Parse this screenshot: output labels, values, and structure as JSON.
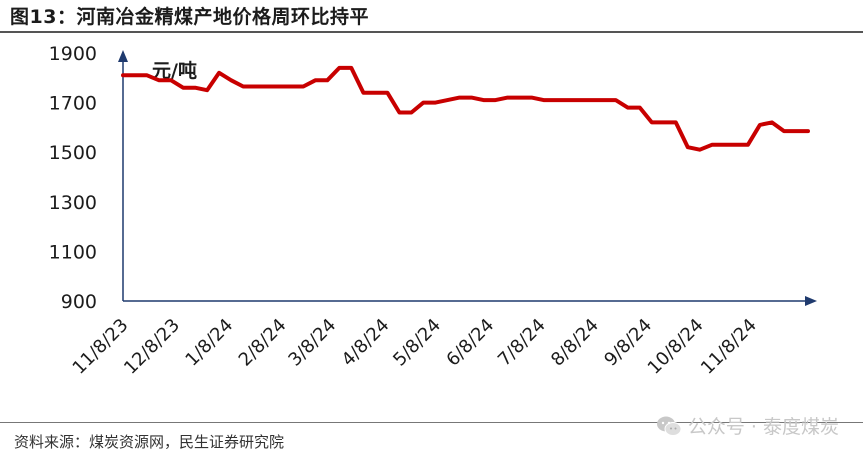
{
  "header": {
    "title": "图13：河南冶金精煤产地价格周环比持平"
  },
  "footer": {
    "source": "资料来源：煤炭资源网，民生证券研究院"
  },
  "watermark": {
    "text": "公众号 · 泰度煤炭",
    "icon": "wechat-icon"
  },
  "colors": {
    "line": "#c80000",
    "axis": "#1f3a6e",
    "text": "#1c1c1c"
  },
  "chart_data": {
    "type": "line",
    "title": "",
    "xlabel": "",
    "ylabel": "元/吨",
    "ylim": [
      900,
      1900
    ],
    "yticks": [
      900,
      1100,
      1300,
      1500,
      1700,
      1900
    ],
    "xticks": [
      "11/8/23",
      "12/8/23",
      "1/8/24",
      "2/8/24",
      "3/8/24",
      "4/8/24",
      "5/8/24",
      "6/8/24",
      "7/8/24",
      "8/8/24",
      "9/8/24",
      "10/8/24",
      "11/8/24"
    ],
    "grid": false,
    "series": [
      {
        "values": [
          [
            "2023-11-08",
            1810
          ],
          [
            "2023-11-15",
            1810
          ],
          [
            "2023-11-22",
            1810
          ],
          [
            "2023-11-29",
            1790
          ],
          [
            "2023-12-06",
            1790
          ],
          [
            "2023-12-13",
            1760
          ],
          [
            "2023-12-20",
            1760
          ],
          [
            "2023-12-27",
            1750
          ],
          [
            "2024-01-03",
            1820
          ],
          [
            "2024-01-10",
            1790
          ],
          [
            "2024-01-17",
            1765
          ],
          [
            "2024-01-24",
            1765
          ],
          [
            "2024-01-31",
            1765
          ],
          [
            "2024-02-07",
            1765
          ],
          [
            "2024-02-14",
            1765
          ],
          [
            "2024-02-21",
            1765
          ],
          [
            "2024-02-28",
            1790
          ],
          [
            "2024-03-06",
            1790
          ],
          [
            "2024-03-13",
            1840
          ],
          [
            "2024-03-20",
            1840
          ],
          [
            "2024-03-27",
            1740
          ],
          [
            "2024-04-03",
            1740
          ],
          [
            "2024-04-10",
            1740
          ],
          [
            "2024-04-17",
            1660
          ],
          [
            "2024-04-24",
            1660
          ],
          [
            "2024-05-01",
            1700
          ],
          [
            "2024-05-08",
            1700
          ],
          [
            "2024-05-15",
            1710
          ],
          [
            "2024-05-22",
            1720
          ],
          [
            "2024-05-29",
            1720
          ],
          [
            "2024-06-05",
            1710
          ],
          [
            "2024-06-12",
            1710
          ],
          [
            "2024-06-19",
            1720
          ],
          [
            "2024-06-26",
            1720
          ],
          [
            "2024-07-03",
            1720
          ],
          [
            "2024-07-10",
            1710
          ],
          [
            "2024-07-17",
            1710
          ],
          [
            "2024-07-24",
            1710
          ],
          [
            "2024-07-31",
            1710
          ],
          [
            "2024-08-07",
            1710
          ],
          [
            "2024-08-14",
            1710
          ],
          [
            "2024-08-21",
            1710
          ],
          [
            "2024-08-28",
            1680
          ],
          [
            "2024-09-04",
            1680
          ],
          [
            "2024-09-11",
            1620
          ],
          [
            "2024-09-18",
            1620
          ],
          [
            "2024-09-25",
            1620
          ],
          [
            "2024-10-02",
            1520
          ],
          [
            "2024-10-09",
            1510
          ],
          [
            "2024-10-16",
            1530
          ],
          [
            "2024-10-23",
            1530
          ],
          [
            "2024-10-30",
            1530
          ],
          [
            "2024-11-06",
            1530
          ],
          [
            "2024-11-13",
            1610
          ],
          [
            "2024-11-20",
            1620
          ],
          [
            "2024-11-27",
            1585
          ],
          [
            "2024-12-04",
            1585
          ],
          [
            "2024-12-11",
            1585
          ]
        ]
      }
    ]
  }
}
